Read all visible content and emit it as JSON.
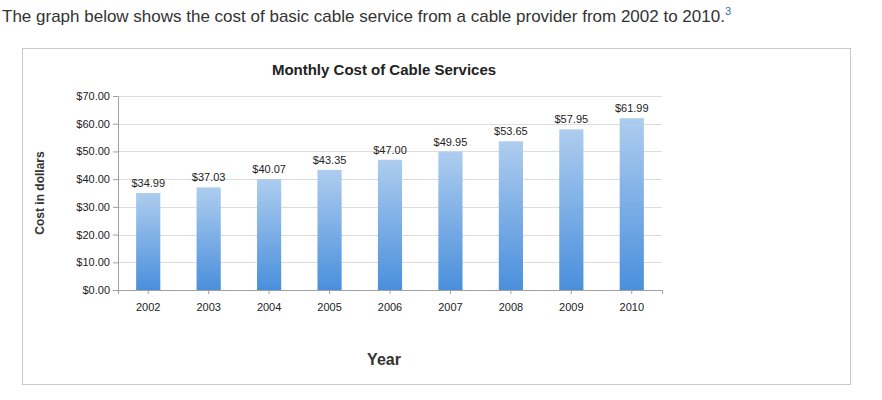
{
  "heading": "The graph below shows the cost of basic cable service from a cable provider from 2002 to 2010.",
  "heading_note": "3",
  "chart_data": {
    "type": "bar",
    "title": "Monthly Cost of Cable Services",
    "x_label": "Year",
    "y_label": "Cost in dollars",
    "categories": [
      "2002",
      "2003",
      "2004",
      "2005",
      "2006",
      "2007",
      "2008",
      "2009",
      "2010"
    ],
    "values": [
      34.99,
      37.03,
      40.07,
      43.35,
      47.0,
      49.95,
      53.65,
      57.95,
      61.99
    ],
    "value_labels": [
      "$34.99",
      "$37.03",
      "$40.07",
      "$43.35",
      "$47.00",
      "$49.95",
      "$53.65",
      "$57.95",
      "$61.99"
    ],
    "color": "#4a8fdc",
    "ylim": [
      0,
      70
    ],
    "yticks": [
      {
        "value": 0,
        "label": "$0.00"
      },
      {
        "value": 10,
        "label": "$10.00"
      },
      {
        "value": 20,
        "label": "$20.00"
      },
      {
        "value": 30,
        "label": "$30.00"
      },
      {
        "value": 40,
        "label": "$40.00"
      },
      {
        "value": 50,
        "label": "$50.00"
      },
      {
        "value": 60,
        "label": "$60.00"
      },
      {
        "value": 70,
        "label": "$70.00"
      }
    ],
    "grid": true,
    "data_labels": true
  }
}
